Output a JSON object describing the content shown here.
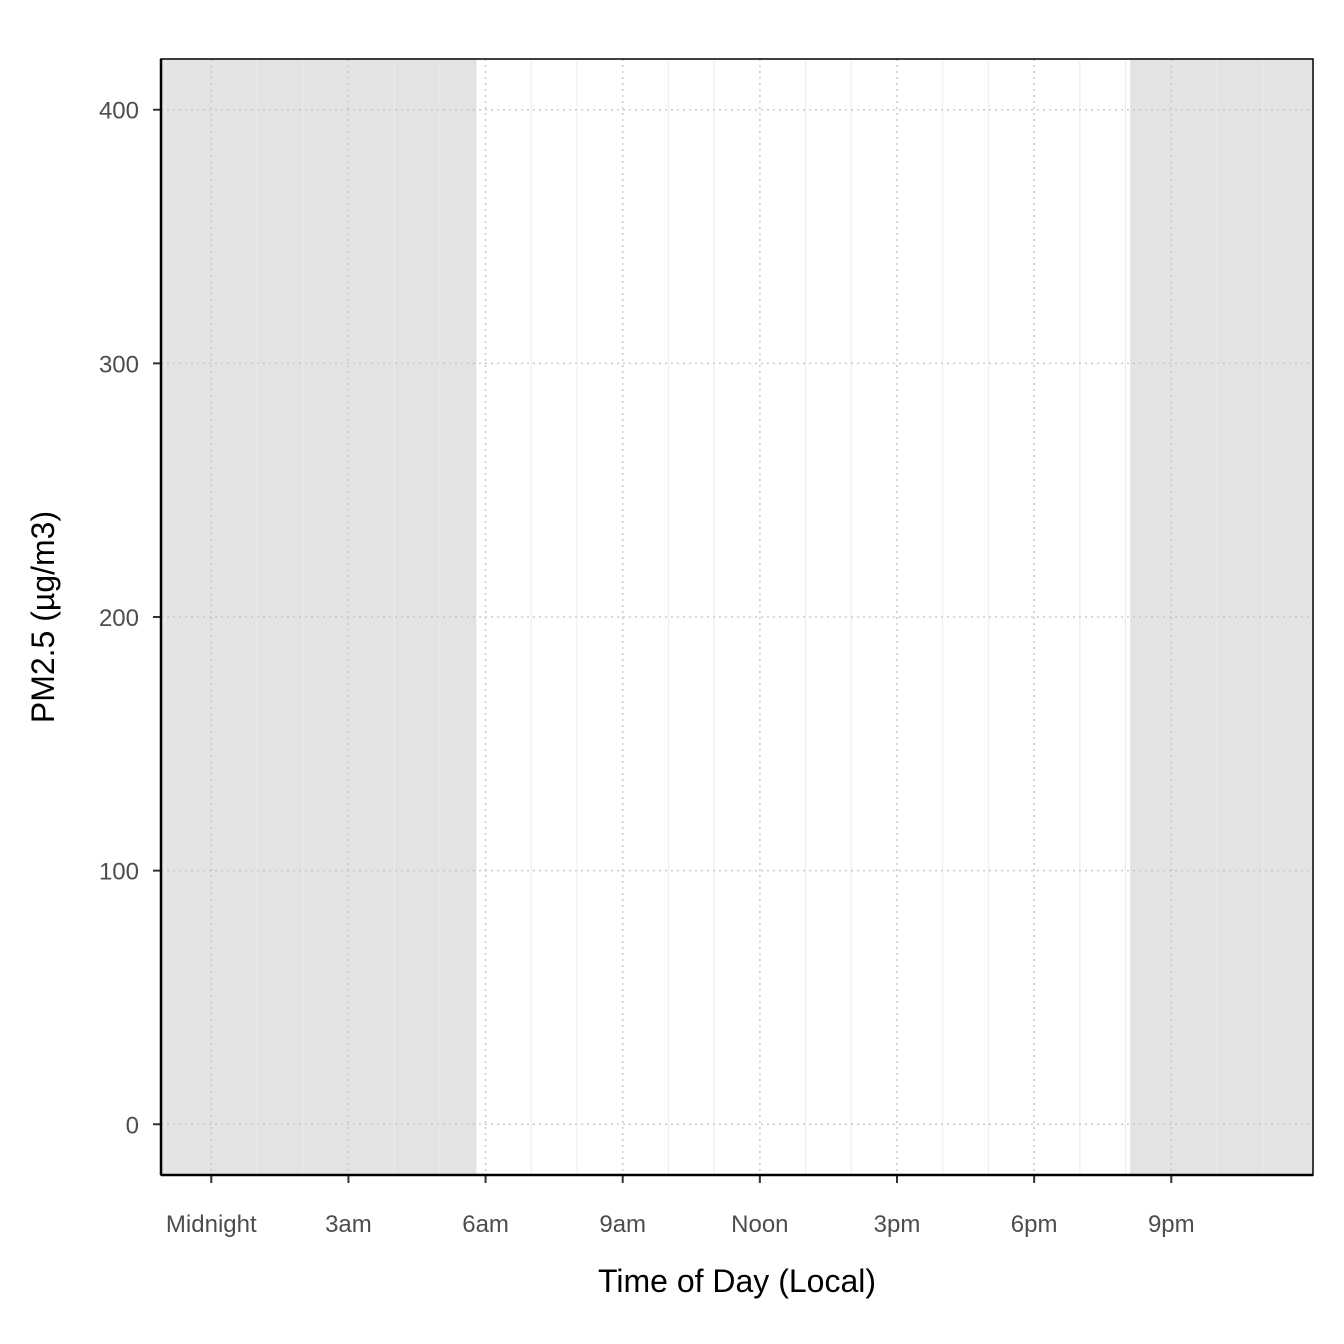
{
  "chart_data": {
    "type": "line",
    "xlabel": "Time of Day (Local)",
    "ylabel": "PM2.5 (µg/m3)",
    "x_unit": "hour",
    "xlim": [
      -1.1,
      24.1
    ],
    "ylim": [
      -20,
      420
    ],
    "x_ticks": [
      {
        "value": 0,
        "label": "Midnight"
      },
      {
        "value": 3,
        "label": "3am"
      },
      {
        "value": 6,
        "label": "6am"
      },
      {
        "value": 9,
        "label": "9am"
      },
      {
        "value": 12,
        "label": "Noon"
      },
      {
        "value": 15,
        "label": "3pm"
      },
      {
        "value": 18,
        "label": "6pm"
      },
      {
        "value": 21,
        "label": "9pm"
      }
    ],
    "y_ticks": [
      0,
      100,
      200,
      300,
      400
    ],
    "night_shading": [
      {
        "start": -1.1,
        "end": 5.8
      },
      {
        "start": 20.1,
        "end": 24.1
      }
    ],
    "series": [],
    "grid": true,
    "colors": {
      "night": "#e3e3e3",
      "grid_major": "#c8c8c8",
      "grid_minor": "#ececec",
      "axis": "#000000"
    }
  }
}
